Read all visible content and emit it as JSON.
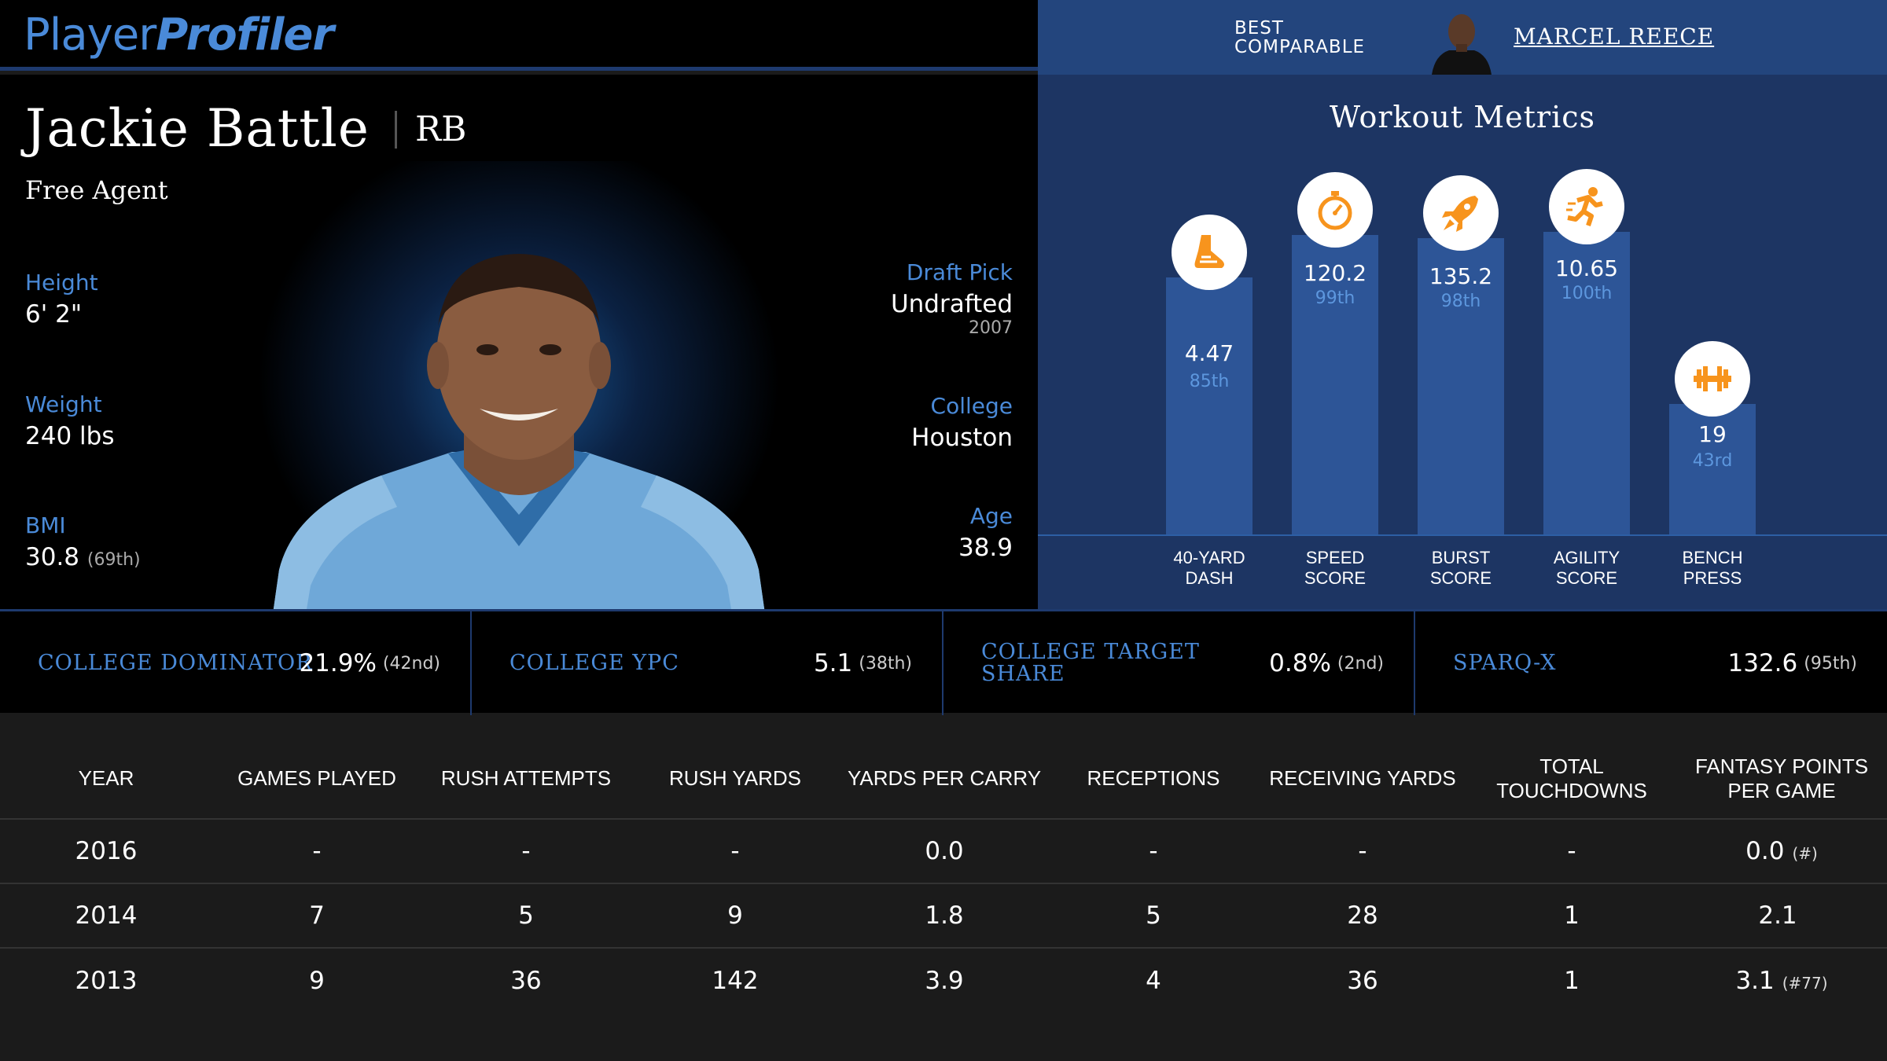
{
  "logo": {
    "part1": "Player",
    "part2": "Profiler"
  },
  "comparable": {
    "label": "BEST\nCOMPARABLE",
    "name": "MARCEL REECE"
  },
  "player": {
    "name": "Jackie Battle",
    "position": "RB",
    "team": "Free Agent",
    "height": {
      "label": "Height",
      "value": "6' 2\""
    },
    "weight": {
      "label": "Weight",
      "value": "240 lbs"
    },
    "bmi": {
      "label": "BMI",
      "value": "30.8",
      "rank": "(69th)"
    },
    "draft": {
      "label": "Draft Pick",
      "value": "Undrafted",
      "year": "2007"
    },
    "college": {
      "label": "College",
      "value": "Houston"
    },
    "age": {
      "label": "Age",
      "value": "38.9"
    }
  },
  "metrics": {
    "title": "Workout Metrics",
    "items": [
      {
        "label": "40-YARD\nDASH",
        "value": "4.47",
        "percentile": "85th",
        "percentile_num": 85,
        "icon": "shoe-icon"
      },
      {
        "label": "SPEED\nSCORE",
        "value": "120.2",
        "percentile": "99th",
        "percentile_num": 99,
        "icon": "stopwatch-icon"
      },
      {
        "label": "BURST\nSCORE",
        "value": "135.2",
        "percentile": "98th",
        "percentile_num": 98,
        "icon": "rocket-icon"
      },
      {
        "label": "AGILITY\nSCORE",
        "value": "10.65",
        "percentile": "100th",
        "percentile_num": 100,
        "icon": "runner-icon"
      },
      {
        "label": "BENCH\nPRESS",
        "value": "19",
        "percentile": "43rd",
        "percentile_num": 43,
        "icon": "barbell-icon"
      }
    ],
    "colors": {
      "bar": "#2d5597",
      "icon": "#f7941d",
      "percentile": "#5d97de"
    }
  },
  "cards": [
    {
      "label": "COLLEGE DOMINATOR",
      "value": "21.9%",
      "rank": "(42nd)"
    },
    {
      "label": "COLLEGE YPC",
      "value": "5.1",
      "rank": "(38th)"
    },
    {
      "label": "COLLEGE TARGET SHARE",
      "value": "0.8%",
      "rank": "(2nd)"
    },
    {
      "label": "SPARQ-x",
      "value": "132.6",
      "rank": "(95th)"
    }
  ],
  "table": {
    "headers": [
      "YEAR",
      "GAMES PLAYED",
      "RUSH ATTEMPTS",
      "RUSH YARDS",
      "YARDS PER CARRY",
      "RECEPTIONS",
      "RECEIVING YARDS",
      "TOTAL TOUCHDOWNS",
      "FANTASY POINTS PER GAME"
    ],
    "rows": [
      {
        "cells": [
          "2016",
          "-",
          "-",
          "-",
          "0.0",
          "-",
          "-",
          "-",
          "0.0"
        ],
        "rank": "(#)"
      },
      {
        "cells": [
          "2014",
          "7",
          "5",
          "9",
          "1.8",
          "5",
          "28",
          "1",
          "2.1"
        ],
        "rank": ""
      },
      {
        "cells": [
          "2013",
          "9",
          "36",
          "142",
          "3.9",
          "4",
          "36",
          "1",
          "3.1"
        ],
        "rank": "(#77)"
      }
    ]
  },
  "colors": {
    "accent": "#4a8ad8",
    "comparable_bg": "#23457d",
    "metrics_bg": "#1d3563"
  }
}
